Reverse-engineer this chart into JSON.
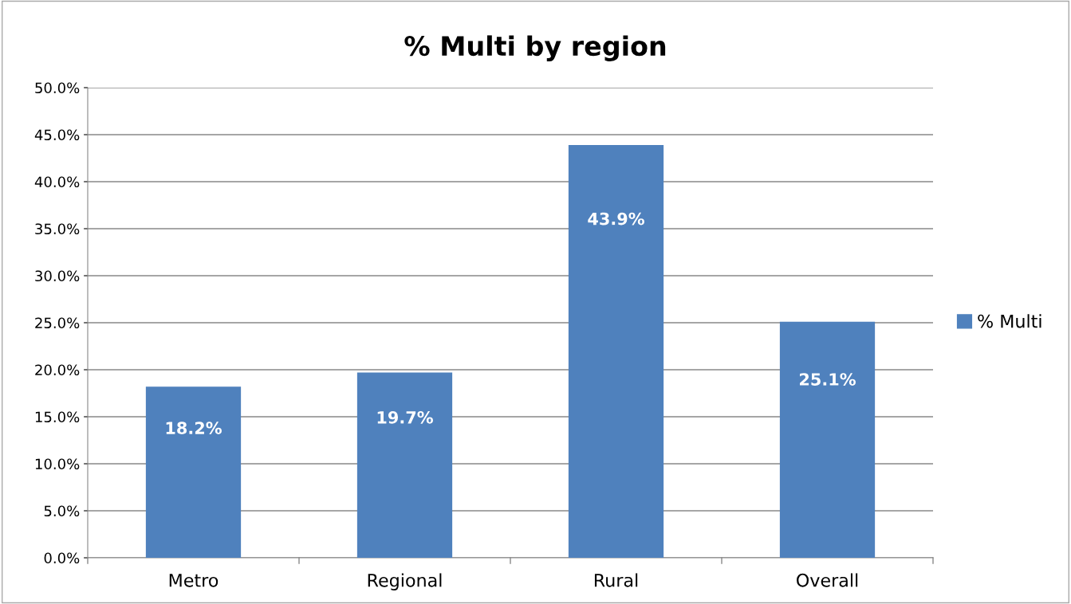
{
  "chart_data": {
    "type": "bar",
    "title": "% Multi by region",
    "categories": [
      "Metro",
      "Regional",
      "Rural",
      "Overall"
    ],
    "series": [
      {
        "name": "% Multi",
        "color": "#4f81bd",
        "values": [
          18.2,
          19.7,
          43.9,
          25.1
        ],
        "value_labels": [
          "18.2%",
          "19.7%",
          "43.9%",
          "25.1%"
        ]
      }
    ],
    "ylim": [
      0,
      50
    ],
    "yticks": [
      {
        "value": 0,
        "label": "0.0%"
      },
      {
        "value": 5,
        "label": "5.0%"
      },
      {
        "value": 10,
        "label": "10.0%"
      },
      {
        "value": 15,
        "label": "15.0%"
      },
      {
        "value": 20,
        "label": "20.0%"
      },
      {
        "value": 25,
        "label": "25.0%"
      },
      {
        "value": 30,
        "label": "30.0%"
      },
      {
        "value": 35,
        "label": "35.0%"
      },
      {
        "value": 40,
        "label": "40.0%"
      },
      {
        "value": 45,
        "label": "45.0%"
      },
      {
        "value": 50,
        "label": "50.0%"
      }
    ],
    "grid": "y",
    "legend": "right"
  }
}
